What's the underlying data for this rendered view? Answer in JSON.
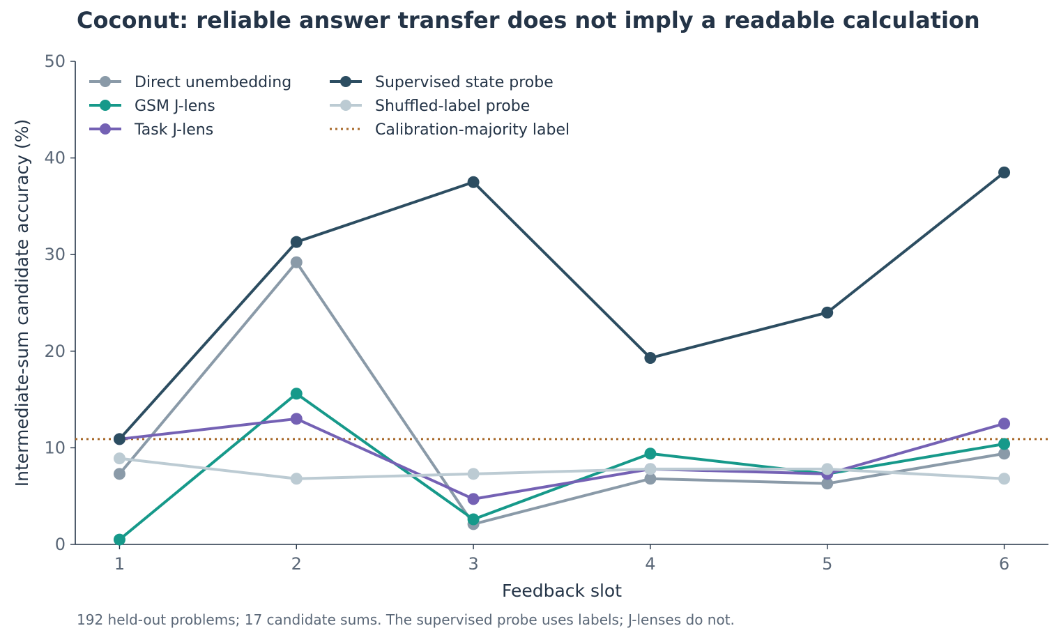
{
  "chart_data": {
    "type": "line",
    "title": "Coconut: reliable answer transfer does not imply a readable calculation",
    "xlabel": "Feedback slot",
    "ylabel": "Intermediate-sum candidate accuracy (%)",
    "footnote": "192 held-out problems; 17 candidate sums. The supervised probe uses labels; J-lenses do not.",
    "x": [
      1,
      2,
      3,
      4,
      5,
      6
    ],
    "xlim": [
      0.75,
      6.25
    ],
    "ylim": [
      0,
      50
    ],
    "yticks": [
      0,
      10,
      20,
      30,
      40,
      50
    ],
    "grid": false,
    "legend_position": "top-left",
    "series": [
      {
        "name": "Direct unembedding",
        "color": "#8a9aa8",
        "values": [
          7.3,
          29.2,
          2.1,
          6.8,
          6.3,
          9.4
        ]
      },
      {
        "name": "GSM J-lens",
        "color": "#16998a",
        "values": [
          0.5,
          15.6,
          2.6,
          9.4,
          7.3,
          10.4
        ]
      },
      {
        "name": "Task J-lens",
        "color": "#7461b4",
        "values": [
          10.9,
          13.0,
          4.7,
          7.8,
          7.3,
          12.5
        ]
      },
      {
        "name": "Supervised state probe",
        "color": "#2c4d61",
        "values": [
          10.9,
          31.3,
          37.5,
          19.3,
          24.0,
          38.5
        ]
      },
      {
        "name": "Shuffled-label probe",
        "color": "#bccbd3",
        "values": [
          8.9,
          6.8,
          7.3,
          7.8,
          7.8,
          6.8
        ]
      }
    ],
    "reference_line": {
      "name": "Calibration-majority label",
      "value": 10.9,
      "color": "#a8692a",
      "style": "dotted"
    }
  }
}
